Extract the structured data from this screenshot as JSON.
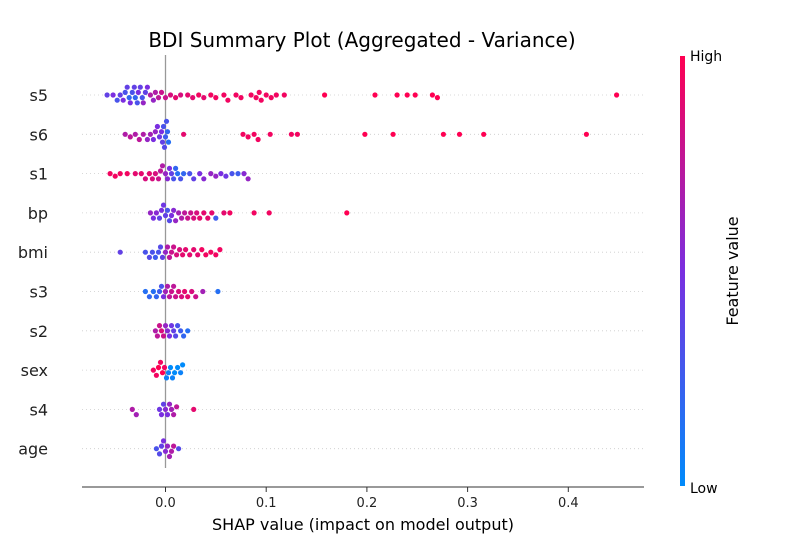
{
  "chart_data": {
    "type": "scatter",
    "subtype": "beeswarm",
    "title": "BDI Summary Plot (Aggregated - Variance)",
    "xlabel": "SHAP value (impact on model output)",
    "ylabel": "",
    "xlim": [
      -0.083,
      0.475
    ],
    "x_ticks": [
      "0.0",
      "0.1",
      "0.2",
      "0.3",
      "0.4"
    ],
    "x_tick_values": [
      0.0,
      0.1,
      0.2,
      0.3,
      0.4
    ],
    "grid": false,
    "colorbar": {
      "high_label": "High",
      "low_label": "Low",
      "label": "Feature value",
      "high_color": "#ff0052",
      "low_color": "#008bfb"
    },
    "features": [
      {
        "name": "s5",
        "points": [
          [
            -0.058,
            0.4
          ],
          [
            -0.052,
            0.5
          ],
          [
            -0.048,
            0.3
          ],
          [
            -0.045,
            0.4
          ],
          [
            -0.042,
            0.5
          ],
          [
            -0.04,
            0.3
          ],
          [
            -0.038,
            0.4
          ],
          [
            -0.036,
            0.2
          ],
          [
            -0.035,
            0.5
          ],
          [
            -0.033,
            0.3
          ],
          [
            -0.031,
            0.4
          ],
          [
            -0.03,
            0.2
          ],
          [
            -0.028,
            0.3
          ],
          [
            -0.027,
            0.5
          ],
          [
            -0.025,
            0.4
          ],
          [
            -0.023,
            0.3
          ],
          [
            -0.022,
            0.6
          ],
          [
            -0.02,
            0.4
          ],
          [
            -0.018,
            0.5
          ],
          [
            -0.015,
            0.7
          ],
          [
            -0.012,
            0.6
          ],
          [
            -0.01,
            0.7
          ],
          [
            -0.007,
            0.75
          ],
          [
            -0.004,
            0.8
          ],
          [
            0.0,
            0.8
          ],
          [
            0.005,
            0.85
          ],
          [
            0.01,
            0.9
          ],
          [
            0.015,
            0.85
          ],
          [
            0.022,
            0.9
          ],
          [
            0.027,
            0.9
          ],
          [
            0.033,
            0.95
          ],
          [
            0.038,
            0.9
          ],
          [
            0.045,
            0.95
          ],
          [
            0.05,
            0.95
          ],
          [
            0.058,
            0.95
          ],
          [
            0.062,
            0.95
          ],
          [
            0.07,
            0.95
          ],
          [
            0.075,
            0.95
          ],
          [
            0.085,
            0.95
          ],
          [
            0.09,
            0.95
          ],
          [
            0.093,
            0.95
          ],
          [
            0.095,
            0.95
          ],
          [
            0.1,
            0.95
          ],
          [
            0.105,
            0.95
          ],
          [
            0.11,
            0.95
          ],
          [
            0.118,
            0.95
          ],
          [
            0.158,
            1.0
          ],
          [
            0.208,
            1.0
          ],
          [
            0.23,
            1.0
          ],
          [
            0.24,
            1.0
          ],
          [
            0.248,
            1.0
          ],
          [
            0.265,
            1.0
          ],
          [
            0.27,
            1.0
          ],
          [
            0.448,
            1.0
          ]
        ]
      },
      {
        "name": "s6",
        "points": [
          [
            -0.04,
            0.7
          ],
          [
            -0.035,
            0.75
          ],
          [
            -0.03,
            0.7
          ],
          [
            -0.026,
            0.75
          ],
          [
            -0.022,
            0.7
          ],
          [
            -0.018,
            0.6
          ],
          [
            -0.015,
            0.65
          ],
          [
            -0.012,
            0.5
          ],
          [
            -0.01,
            0.6
          ],
          [
            -0.008,
            0.5
          ],
          [
            -0.006,
            0.45
          ],
          [
            -0.004,
            0.5
          ],
          [
            -0.003,
            0.4
          ],
          [
            -0.002,
            0.3
          ],
          [
            -0.001,
            0.35
          ],
          [
            0.0,
            0.25
          ],
          [
            0.001,
            0.3
          ],
          [
            0.002,
            0.2
          ],
          [
            0.003,
            0.15
          ],
          [
            0.018,
            0.9
          ],
          [
            0.077,
            0.95
          ],
          [
            0.082,
            0.95
          ],
          [
            0.088,
            0.95
          ],
          [
            0.092,
            0.95
          ],
          [
            0.104,
            0.95
          ],
          [
            0.125,
            0.95
          ],
          [
            0.131,
            0.95
          ],
          [
            0.198,
            1.0
          ],
          [
            0.226,
            1.0
          ],
          [
            0.276,
            1.0
          ],
          [
            0.292,
            1.0
          ],
          [
            0.316,
            1.0
          ],
          [
            0.418,
            1.0
          ]
        ]
      },
      {
        "name": "s1",
        "points": [
          [
            -0.055,
            0.95
          ],
          [
            -0.05,
            0.95
          ],
          [
            -0.045,
            0.95
          ],
          [
            -0.038,
            0.95
          ],
          [
            -0.03,
            0.9
          ],
          [
            -0.024,
            0.9
          ],
          [
            -0.02,
            0.85
          ],
          [
            -0.016,
            0.9
          ],
          [
            -0.013,
            0.85
          ],
          [
            -0.01,
            0.85
          ],
          [
            -0.007,
            0.8
          ],
          [
            -0.005,
            0.75
          ],
          [
            -0.003,
            0.7
          ],
          [
            0.0,
            0.6
          ],
          [
            0.002,
            0.55
          ],
          [
            0.004,
            0.5
          ],
          [
            0.006,
            0.4
          ],
          [
            0.008,
            0.3
          ],
          [
            0.01,
            0.2
          ],
          [
            0.012,
            0.15
          ],
          [
            0.015,
            0.3
          ],
          [
            0.018,
            0.2
          ],
          [
            0.024,
            0.3
          ],
          [
            0.028,
            0.4
          ],
          [
            0.034,
            0.5
          ],
          [
            0.038,
            0.55
          ],
          [
            0.045,
            0.6
          ],
          [
            0.05,
            0.6
          ],
          [
            0.055,
            0.5
          ],
          [
            0.06,
            0.45
          ],
          [
            0.066,
            0.3
          ],
          [
            0.072,
            0.25
          ],
          [
            0.078,
            0.55
          ],
          [
            0.082,
            0.6
          ]
        ]
      },
      {
        "name": "bp",
        "points": [
          [
            -0.015,
            0.6
          ],
          [
            -0.012,
            0.5
          ],
          [
            -0.009,
            0.55
          ],
          [
            -0.006,
            0.4
          ],
          [
            -0.004,
            0.5
          ],
          [
            -0.002,
            0.45
          ],
          [
            0.0,
            0.4
          ],
          [
            0.002,
            0.3
          ],
          [
            0.004,
            0.35
          ],
          [
            0.006,
            0.5
          ],
          [
            0.008,
            0.55
          ],
          [
            0.01,
            0.6
          ],
          [
            0.013,
            0.65
          ],
          [
            0.016,
            0.7
          ],
          [
            0.019,
            0.75
          ],
          [
            0.022,
            0.8
          ],
          [
            0.025,
            0.8
          ],
          [
            0.028,
            0.85
          ],
          [
            0.031,
            0.85
          ],
          [
            0.034,
            0.9
          ],
          [
            0.038,
            0.9
          ],
          [
            0.042,
            0.9
          ],
          [
            0.046,
            0.9
          ],
          [
            0.05,
            0.25
          ],
          [
            0.058,
            0.9
          ],
          [
            0.064,
            0.95
          ],
          [
            0.088,
            0.95
          ],
          [
            0.103,
            0.95
          ],
          [
            0.18,
            1.0
          ]
        ]
      },
      {
        "name": "bmi",
        "points": [
          [
            -0.045,
            0.4
          ],
          [
            -0.02,
            0.3
          ],
          [
            -0.016,
            0.35
          ],
          [
            -0.013,
            0.3
          ],
          [
            -0.01,
            0.25
          ],
          [
            -0.007,
            0.3
          ],
          [
            -0.005,
            0.35
          ],
          [
            -0.003,
            0.4
          ],
          [
            0.0,
            0.6
          ],
          [
            0.002,
            0.7
          ],
          [
            0.004,
            0.75
          ],
          [
            0.006,
            0.8
          ],
          [
            0.008,
            0.8
          ],
          [
            0.011,
            0.85
          ],
          [
            0.014,
            0.85
          ],
          [
            0.017,
            0.9
          ],
          [
            0.02,
            0.9
          ],
          [
            0.024,
            0.9
          ],
          [
            0.028,
            0.9
          ],
          [
            0.032,
            0.9
          ],
          [
            0.036,
            0.95
          ],
          [
            0.04,
            0.95
          ],
          [
            0.045,
            0.95
          ],
          [
            0.05,
            0.95
          ],
          [
            0.054,
            0.95
          ]
        ]
      },
      {
        "name": "s3",
        "points": [
          [
            -0.02,
            0.15
          ],
          [
            -0.016,
            0.2
          ],
          [
            -0.012,
            0.15
          ],
          [
            -0.009,
            0.2
          ],
          [
            -0.006,
            0.25
          ],
          [
            -0.004,
            0.3
          ],
          [
            -0.002,
            0.5
          ],
          [
            0.0,
            0.65
          ],
          [
            0.002,
            0.7
          ],
          [
            0.004,
            0.75
          ],
          [
            0.006,
            0.8
          ],
          [
            0.008,
            0.75
          ],
          [
            0.01,
            0.8
          ],
          [
            0.013,
            0.85
          ],
          [
            0.016,
            0.85
          ],
          [
            0.019,
            0.9
          ],
          [
            0.022,
            0.9
          ],
          [
            0.026,
            0.85
          ],
          [
            0.03,
            0.8
          ],
          [
            0.037,
            0.65
          ],
          [
            0.052,
            0.15
          ]
        ]
      },
      {
        "name": "s2",
        "points": [
          [
            -0.01,
            0.7
          ],
          [
            -0.008,
            0.75
          ],
          [
            -0.006,
            0.8
          ],
          [
            -0.004,
            0.85
          ],
          [
            -0.002,
            0.8
          ],
          [
            0.0,
            0.6
          ],
          [
            0.002,
            0.55
          ],
          [
            0.004,
            0.5
          ],
          [
            0.006,
            0.45
          ],
          [
            0.008,
            0.4
          ],
          [
            0.01,
            0.35
          ],
          [
            0.012,
            0.3
          ],
          [
            0.015,
            0.25
          ],
          [
            0.018,
            0.2
          ],
          [
            0.022,
            0.15
          ]
        ]
      },
      {
        "name": "sex",
        "points": [
          [
            -0.012,
            0.95
          ],
          [
            -0.009,
            0.95
          ],
          [
            -0.007,
            1.0
          ],
          [
            -0.005,
            0.95
          ],
          [
            -0.003,
            1.0
          ],
          [
            -0.001,
            0.95
          ],
          [
            0.001,
            0.05
          ],
          [
            0.003,
            0.05
          ],
          [
            0.005,
            0.0
          ],
          [
            0.007,
            0.05
          ],
          [
            0.009,
            0.0
          ],
          [
            0.012,
            0.0
          ],
          [
            0.015,
            0.05
          ],
          [
            0.017,
            0.0
          ]
        ]
      },
      {
        "name": "s4",
        "points": [
          [
            -0.033,
            0.7
          ],
          [
            -0.029,
            0.65
          ],
          [
            -0.006,
            0.45
          ],
          [
            -0.004,
            0.5
          ],
          [
            -0.002,
            0.4
          ],
          [
            0.0,
            0.55
          ],
          [
            0.002,
            0.5
          ],
          [
            0.004,
            0.6
          ],
          [
            0.006,
            0.65
          ],
          [
            0.008,
            0.7
          ],
          [
            0.011,
            0.75
          ],
          [
            0.028,
            0.9
          ]
        ]
      },
      {
        "name": "age",
        "points": [
          [
            -0.009,
            0.3
          ],
          [
            -0.006,
            0.35
          ],
          [
            -0.004,
            0.4
          ],
          [
            -0.002,
            0.5
          ],
          [
            0.0,
            0.55
          ],
          [
            0.002,
            0.6
          ],
          [
            0.004,
            0.65
          ],
          [
            0.006,
            0.7
          ],
          [
            0.008,
            0.75
          ],
          [
            0.013,
            0.35
          ]
        ]
      }
    ]
  }
}
